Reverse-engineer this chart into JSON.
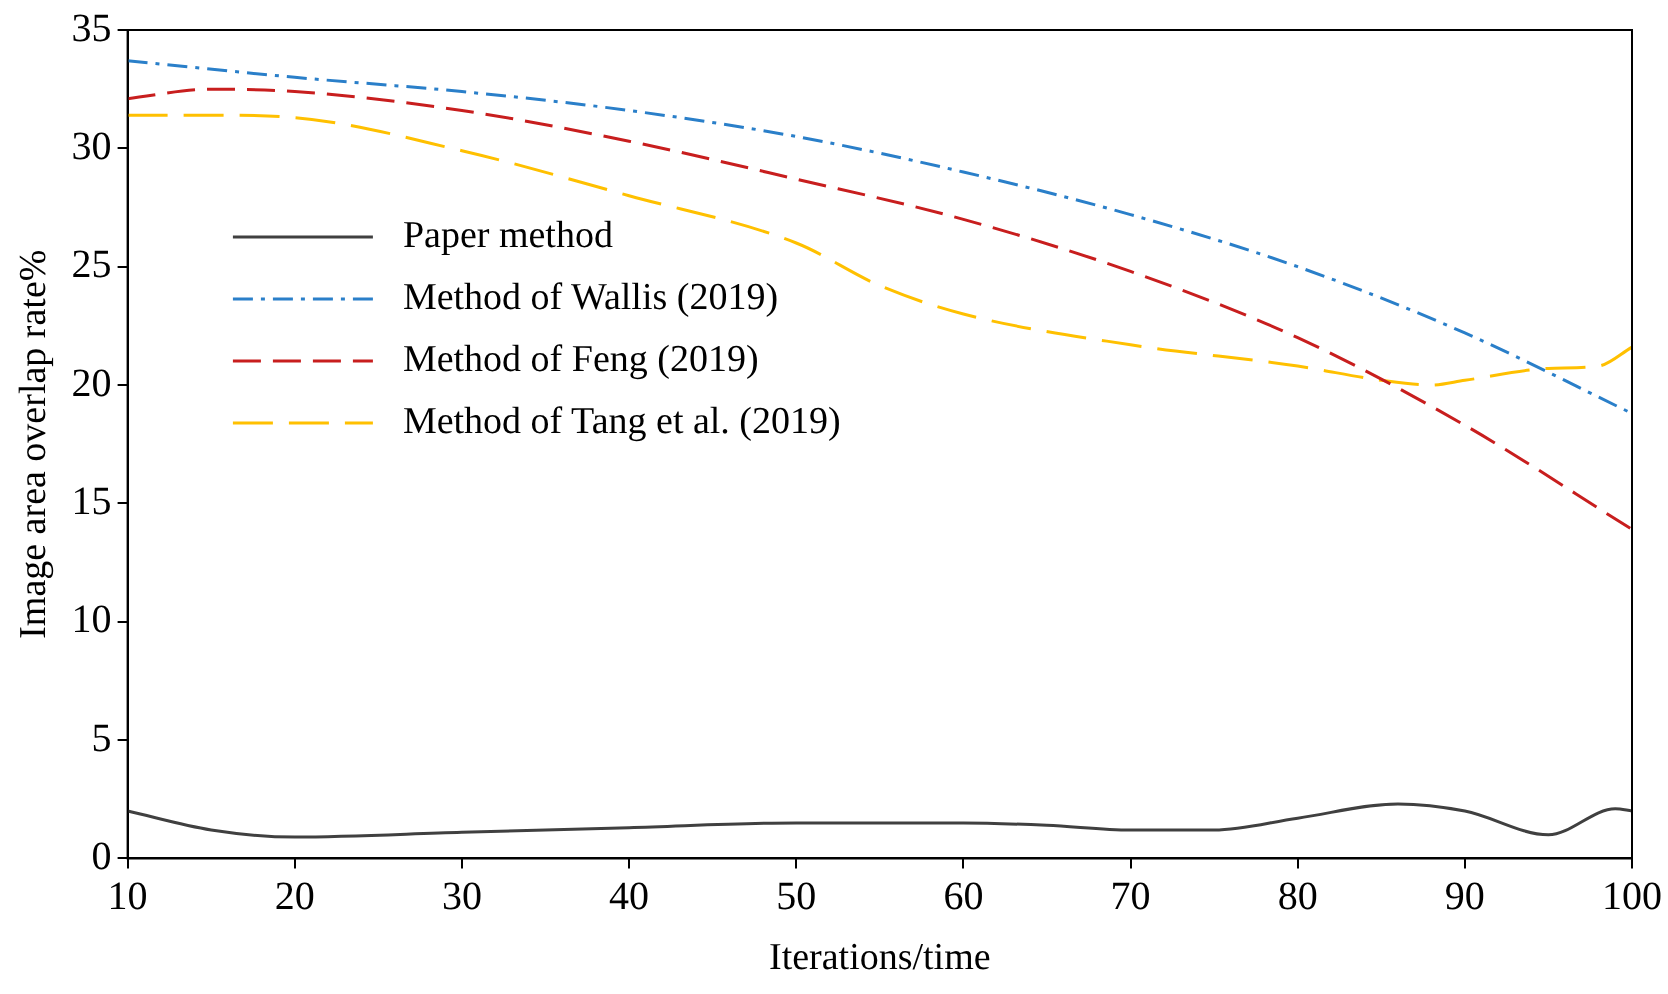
{
  "chart_data": {
    "type": "line",
    "xlabel": "Iterations/time",
    "ylabel": "Image area overlap rate%",
    "xlim": [
      10,
      100
    ],
    "xticks": [
      10,
      20,
      30,
      40,
      50,
      60,
      70,
      80,
      90,
      100
    ],
    "ylim": [
      0,
      35
    ],
    "yticks": [
      0,
      5,
      10,
      15,
      20,
      25,
      30,
      35
    ],
    "grid": false,
    "legend": "left",
    "marker": "none",
    "series": [
      {
        "name": "Paper method",
        "color": "#404040",
        "line_style": "solid",
        "x": [
          10,
          15,
          20,
          30,
          40,
          50,
          60,
          65,
          70,
          75,
          80,
          86,
          90,
          95,
          99,
          100
        ],
        "values": [
          2.0,
          1.2,
          0.9,
          1.1,
          1.3,
          1.5,
          1.5,
          1.4,
          1.2,
          1.2,
          1.7,
          2.3,
          2.0,
          1.0,
          2.1,
          2.0
        ]
      },
      {
        "name": "Method of Wallis (2019)",
        "color": "#2a7fc9",
        "line_style": "dashdot",
        "x": [
          10,
          20,
          30,
          40,
          50,
          60,
          70,
          80,
          90,
          100
        ],
        "values": [
          33.7,
          33.0,
          32.4,
          31.6,
          30.5,
          29.0,
          27.2,
          25.0,
          22.2,
          18.8
        ]
      },
      {
        "name": "Method of Feng (2019)",
        "color": "#c81e1e",
        "line_style": "dashed",
        "x": [
          10,
          15,
          20,
          30,
          40,
          50,
          60,
          70,
          80,
          90,
          100
        ],
        "values": [
          32.1,
          32.5,
          32.4,
          31.6,
          30.3,
          28.7,
          27.0,
          24.8,
          22.0,
          18.3,
          13.9
        ]
      },
      {
        "name": "Method of Tang et al. (2019)",
        "color": "#ffc000",
        "line_style": "longdash",
        "x": [
          10,
          15,
          20,
          30,
          40,
          50,
          55,
          60,
          70,
          80,
          85,
          88,
          90,
          95,
          98,
          100
        ],
        "values": [
          31.4,
          31.4,
          31.3,
          29.9,
          28.0,
          26.0,
          24.2,
          23.0,
          21.7,
          20.8,
          20.2,
          20.0,
          20.2,
          20.7,
          20.8,
          21.6
        ]
      }
    ]
  }
}
